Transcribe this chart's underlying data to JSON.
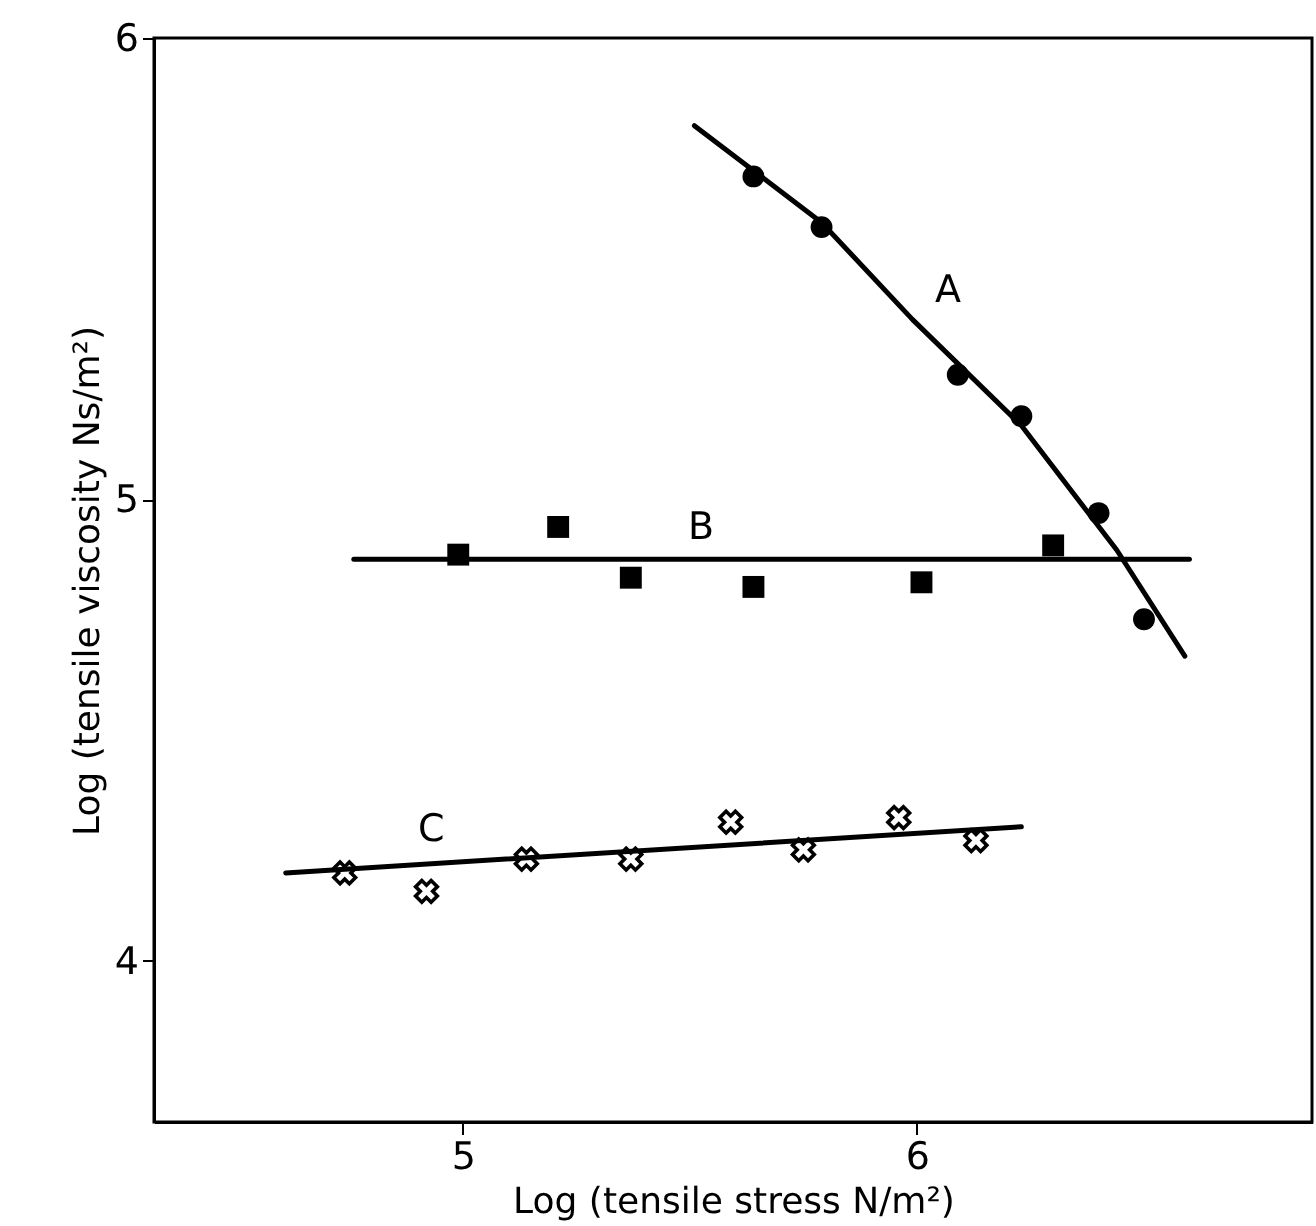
{
  "chart_data": {
    "type": "scatter",
    "xlabel": "Log (tensile stress N/m²)",
    "ylabel": "Log (tensile viscosity Ns/m²)",
    "xlim": [
      4.32,
      6.87
    ],
    "ylim": [
      3.65,
      6
    ],
    "xticks": [
      5,
      6
    ],
    "yticks": [
      4,
      5,
      6
    ],
    "grid": false,
    "series": [
      {
        "name": "A",
        "type": "line",
        "color": "#000000",
        "marker": "none",
        "line_style": "solid",
        "x": [
          5.51,
          5.79,
          5.99,
          6.23,
          6.44,
          6.59
        ],
        "values": [
          5.81,
          5.6,
          5.39,
          5.16,
          4.89,
          4.66
        ]
      },
      {
        "color": "#000000",
        "marker": "circle",
        "x": [
          5.64,
          5.79,
          6.09,
          6.23,
          6.4,
          6.5
        ],
        "values": [
          5.7,
          5.59,
          5.27,
          5.18,
          4.97,
          4.74
        ]
      },
      {
        "name": "B",
        "type": "line",
        "color": "#000000",
        "marker": "none",
        "line_style": "solid",
        "x": [
          4.76,
          6.6
        ],
        "values": [
          4.87,
          4.87
        ]
      },
      {
        "color": "#000000",
        "marker": "square",
        "x": [
          4.99,
          5.21,
          5.37,
          5.64,
          6.01,
          6.3
        ],
        "values": [
          4.88,
          4.94,
          4.83,
          4.81,
          4.82,
          4.9
        ]
      },
      {
        "name": "C",
        "type": "line",
        "color": "#000000",
        "marker": "none",
        "line_style": "solid",
        "x": [
          4.61,
          6.23
        ],
        "values": [
          4.19,
          4.29
        ]
      },
      {
        "color": "#000000",
        "marker": "cross",
        "x": [
          4.74,
          4.92,
          5.14,
          5.37,
          5.59,
          5.75,
          5.96,
          6.13
        ],
        "values": [
          4.19,
          4.15,
          4.22,
          4.22,
          4.3,
          4.24,
          4.31,
          4.26
        ]
      }
    ]
  }
}
